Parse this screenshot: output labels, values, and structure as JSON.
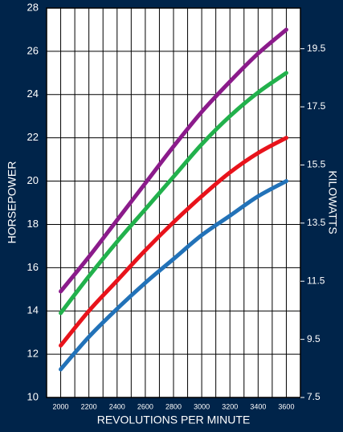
{
  "chart_data": {
    "type": "line",
    "xlabel": "REVOLUTIONS PER MINUTE",
    "ylabel": "HORSEPOWER",
    "y2label": "KILOWATTS",
    "x_ticks": [
      2000,
      2200,
      2400,
      2600,
      2800,
      3000,
      3200,
      3400,
      3600
    ],
    "y_ticks": [
      10,
      12,
      14,
      16,
      18,
      20,
      22,
      24,
      26,
      28
    ],
    "y2_ticks": [
      "7.5",
      "9.5",
      "11.5",
      "13.5",
      "15.5",
      "17.5",
      "19.5"
    ],
    "xlim": [
      1900,
      3700
    ],
    "ylim": [
      10,
      28
    ],
    "y2lim": [
      7.5,
      20.9
    ],
    "grid": true,
    "background": "#00244a",
    "plot_background": "#ffffff",
    "grid_color": "#000000",
    "series": [
      {
        "color": "#8b1b8b",
        "x": [
          2000,
          2200,
          2400,
          2600,
          2800,
          3000,
          3200,
          3400,
          3600
        ],
        "values": [
          14.9,
          16.5,
          18.2,
          19.9,
          21.6,
          23.2,
          24.6,
          25.9,
          27.0
        ]
      },
      {
        "color": "#22b14c",
        "x": [
          2000,
          2200,
          2400,
          2600,
          2800,
          3000,
          3200,
          3400,
          3600
        ],
        "values": [
          13.9,
          15.6,
          17.2,
          18.7,
          20.2,
          21.7,
          23.0,
          24.1,
          25.0
        ]
      },
      {
        "color": "#e8131b",
        "x": [
          2000,
          2200,
          2400,
          2600,
          2800,
          3000,
          3200,
          3400,
          3600
        ],
        "values": [
          12.4,
          14.0,
          15.4,
          16.8,
          18.1,
          19.3,
          20.4,
          21.3,
          22.0
        ]
      },
      {
        "color": "#2272b8",
        "x": [
          2000,
          2200,
          2400,
          2600,
          2800,
          3000,
          3200,
          3400,
          3600
        ],
        "values": [
          11.3,
          12.8,
          14.1,
          15.3,
          16.4,
          17.5,
          18.4,
          19.3,
          20.0
        ]
      }
    ]
  }
}
